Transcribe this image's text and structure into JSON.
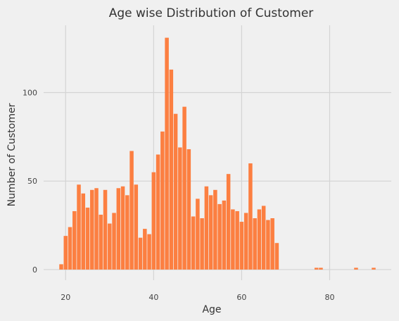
{
  "chart_data": {
    "type": "bar",
    "title": "Age wise Distribution of Customer",
    "xlabel": "Age",
    "ylabel": "Number of Customer",
    "xlim": [
      15,
      94
    ],
    "ylim": [
      -6,
      138
    ],
    "xticks": [
      20,
      40,
      60,
      80
    ],
    "yticks": [
      0,
      50,
      100
    ],
    "grid": true,
    "bar_color": "#fc7f41",
    "grid_color": "#d4d4d4",
    "background": "#f0f0f0",
    "x": [
      19,
      20,
      21,
      22,
      23,
      24,
      25,
      26,
      27,
      28,
      29,
      30,
      31,
      32,
      33,
      34,
      35,
      36,
      37,
      38,
      39,
      40,
      41,
      42,
      43,
      44,
      45,
      46,
      47,
      48,
      49,
      50,
      51,
      52,
      53,
      54,
      55,
      56,
      57,
      58,
      59,
      60,
      61,
      62,
      63,
      64,
      65,
      66,
      67,
      68,
      77,
      78,
      86,
      90
    ],
    "values": [
      3,
      19,
      24,
      33,
      48,
      43,
      35,
      45,
      46,
      31,
      45,
      26,
      32,
      46,
      47,
      42,
      67,
      48,
      18,
      23,
      20,
      55,
      65,
      78,
      131,
      113,
      88,
      69,
      92,
      68,
      30,
      40,
      29,
      47,
      42,
      45,
      37,
      39,
      54,
      34,
      33,
      27,
      32,
      60,
      29,
      34,
      36,
      28,
      29,
      15,
      1,
      1,
      1,
      1
    ]
  }
}
